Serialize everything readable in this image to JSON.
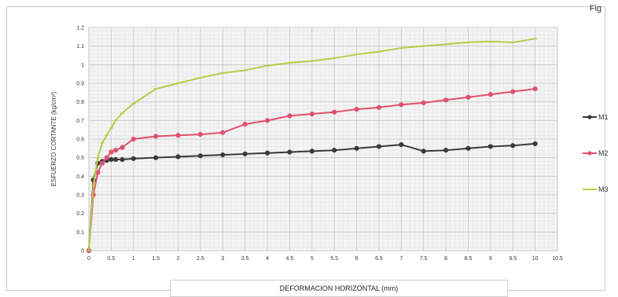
{
  "corner_text": "Fig",
  "chart_data": {
    "type": "line",
    "xlabel": "DEFORMACION HORIZONTAL (mm)",
    "ylabel": "ESFUERZO CORTANTE (kg/cm²)",
    "xlim": [
      0,
      10.5
    ],
    "ylim": [
      0,
      1.2
    ],
    "xticks": [
      "0",
      "0.5",
      "1",
      "1.5",
      "2",
      "2.5",
      "3",
      "3.5",
      "4",
      "4.5",
      "5",
      "5.5",
      "6",
      "6.5",
      "7",
      "7.5",
      "8",
      "8.5",
      "9",
      "9.5",
      "10",
      "10.5"
    ],
    "yticks": [
      "0",
      "0.1",
      "0.2",
      "0.3",
      "0.4",
      "0.5",
      "0.6",
      "0.7",
      "0.8",
      "0.9",
      "1",
      "1.1",
      "1.2"
    ],
    "grid": true,
    "legend_position": "right",
    "series": [
      {
        "name": "M1",
        "color": "#3a3a3a",
        "x": [
          0,
          0.1,
          0.2,
          0.3,
          0.4,
          0.5,
          0.6,
          0.75,
          1,
          1.5,
          2,
          2.5,
          3,
          3.5,
          4,
          4.5,
          5,
          5.5,
          6,
          6.5,
          7,
          7.5,
          8,
          8.5,
          9,
          9.5,
          10
        ],
        "y": [
          0,
          0.38,
          0.47,
          0.48,
          0.485,
          0.49,
          0.49,
          0.49,
          0.495,
          0.5,
          0.505,
          0.51,
          0.515,
          0.52,
          0.525,
          0.53,
          0.535,
          0.54,
          0.55,
          0.56,
          0.57,
          0.535,
          0.54,
          0.55,
          0.56,
          0.565,
          0.575
        ]
      },
      {
        "name": "M2",
        "color": "#e0506e",
        "x": [
          0,
          0.1,
          0.2,
          0.3,
          0.4,
          0.5,
          0.6,
          0.75,
          1,
          1.5,
          2,
          2.5,
          3,
          3.5,
          4,
          4.5,
          5,
          5.5,
          6,
          6.5,
          7,
          7.5,
          8,
          8.5,
          9,
          9.5,
          10
        ],
        "y": [
          0,
          0.3,
          0.42,
          0.47,
          0.5,
          0.53,
          0.54,
          0.555,
          0.6,
          0.615,
          0.62,
          0.625,
          0.635,
          0.68,
          0.7,
          0.725,
          0.735,
          0.745,
          0.76,
          0.77,
          0.785,
          0.795,
          0.81,
          0.825,
          0.84,
          0.855,
          0.87
        ]
      },
      {
        "name": "M3",
        "color": "#b5cc47",
        "x": [
          0,
          0.1,
          0.2,
          0.3,
          0.4,
          0.5,
          0.6,
          0.75,
          1,
          1.5,
          2,
          2.5,
          3,
          3.5,
          4,
          4.5,
          5,
          5.5,
          6,
          6.5,
          7,
          7.5,
          8,
          8.5,
          9,
          9.5,
          10
        ],
        "y": [
          0,
          0.35,
          0.5,
          0.58,
          0.62,
          0.66,
          0.7,
          0.74,
          0.79,
          0.87,
          0.9,
          0.93,
          0.955,
          0.97,
          0.995,
          1.01,
          1.02,
          1.035,
          1.055,
          1.07,
          1.09,
          1.1,
          1.11,
          1.12,
          1.125,
          1.12,
          1.14
        ]
      }
    ]
  }
}
